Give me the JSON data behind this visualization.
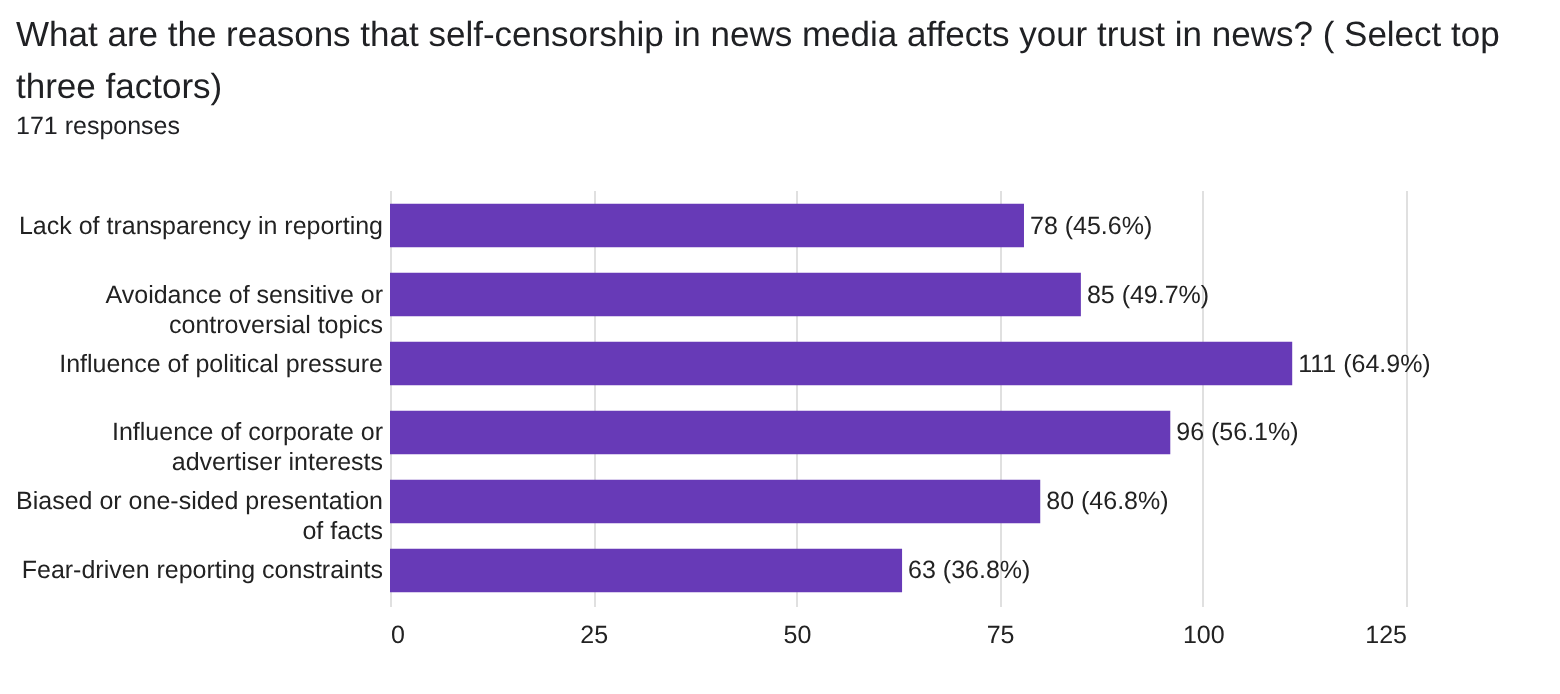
{
  "chart_data": {
    "type": "bar",
    "orientation": "horizontal",
    "title": "What are the reasons that self-censorship in news media affects your trust in news? ( Select top three factors)",
    "subtitle": "171 responses",
    "categories": [
      "Lack of transparency in reporting",
      "Avoidance of sensitive or controversial topics",
      "Influence of political pressure",
      "Influence of corporate or advertiser interests",
      "Biased or one-sided presentation of facts",
      "Fear-driven reporting constraints"
    ],
    "values": [
      78,
      85,
      111,
      96,
      80,
      63
    ],
    "value_labels": [
      "78 (45.6%)",
      "85 (49.7%)",
      "111 (64.9%)",
      "96 (56.1%)",
      "80 (46.8%)",
      "63 (36.8%)"
    ],
    "color": "#673ab7",
    "xlim": [
      0,
      125
    ],
    "xticks": [
      0,
      25,
      50,
      75,
      100,
      125
    ],
    "grid": "x"
  }
}
